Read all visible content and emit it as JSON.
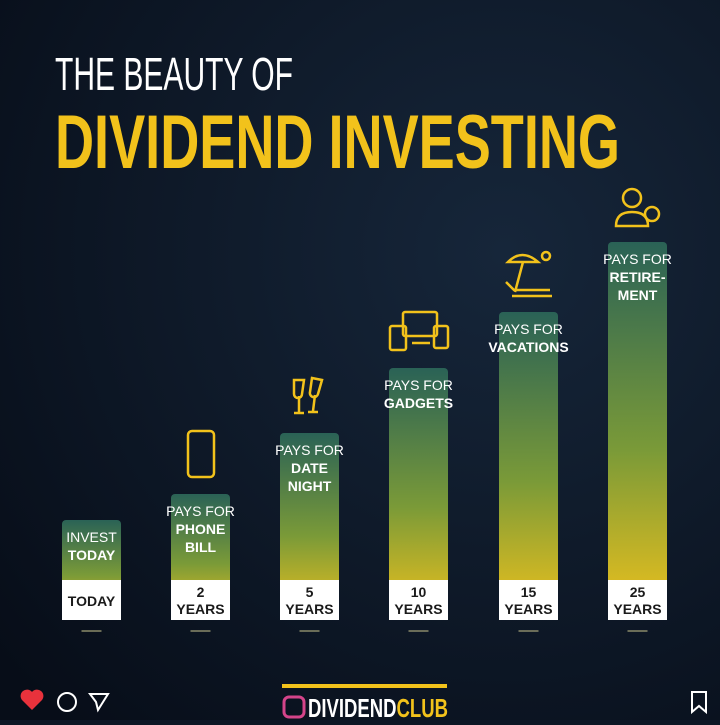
{
  "header": {
    "line1": "THE BEAUTY OF",
    "line2": "DIVIDEND INVESTING"
  },
  "columns": [
    {
      "label": [
        "INVEST",
        "TODAY"
      ],
      "period": [
        "TODAY"
      ]
    },
    {
      "label": [
        "PAYS FOR",
        "PHONE",
        "BILL"
      ],
      "period": [
        "2",
        "YEARS"
      ]
    },
    {
      "label": [
        "PAYS FOR",
        "DATE",
        "NIGHT"
      ],
      "period": [
        "5",
        "YEARS"
      ]
    },
    {
      "label": [
        "PAYS FOR",
        "GADGETS"
      ],
      "period": [
        "10",
        "YEARS"
      ]
    },
    {
      "label": [
        "PAYS FOR",
        "VACATIONS"
      ],
      "period": [
        "15",
        "YEARS"
      ]
    },
    {
      "label": [
        "PAYS FOR",
        "RETIRE-",
        "MENT"
      ],
      "period": [
        "25",
        "YEARS"
      ]
    }
  ],
  "footer": {
    "brand_main": "DIVIDEND",
    "brand_accent": "CLUB"
  }
}
